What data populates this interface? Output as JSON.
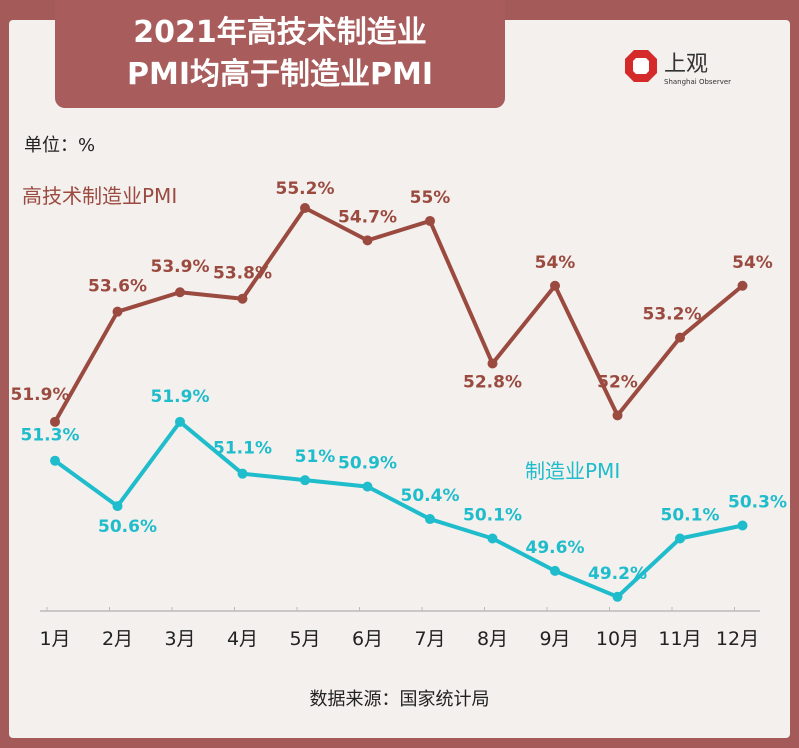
{
  "title_lines": [
    "2021年高技术制造业",
    "PMI均高于制造业PMI"
  ],
  "logo": {
    "cn": "上观",
    "en": "Shanghai Observer"
  },
  "unit": "单位：%",
  "source": "数据来源：国家统计局",
  "colors": {
    "frame": "#a35a58",
    "high_tech": "#9b4a40",
    "manufacturing": "#1fbccc"
  },
  "chart_data": {
    "type": "line",
    "categories": [
      "1月",
      "2月",
      "3月",
      "4月",
      "5月",
      "6月",
      "7月",
      "8月",
      "9月",
      "10月",
      "11月",
      "12月"
    ],
    "series": [
      {
        "name": "高技术制造业PMI",
        "values": [
          51.9,
          53.6,
          53.9,
          53.8,
          55.2,
          54.7,
          55,
          52.8,
          54,
          52,
          53.2,
          54
        ],
        "labels": [
          "51.9%",
          "53.6%",
          "53.9%",
          "53.8%",
          "55.2%",
          "54.7%",
          "55%",
          "52.8%",
          "54%",
          "52%",
          "53.2%",
          "54%"
        ]
      },
      {
        "name": "制造业PMI",
        "values": [
          51.3,
          50.6,
          51.9,
          51.1,
          51,
          50.9,
          50.4,
          50.1,
          49.6,
          49.2,
          50.1,
          50.3
        ],
        "labels": [
          "51.3%",
          "50.6%",
          "51.9%",
          "51.1%",
          "51%",
          "50.9%",
          "50.4%",
          "50.1%",
          "49.6%",
          "49.2%",
          "50.1%",
          "50.3%"
        ]
      }
    ],
    "grid": false
  }
}
